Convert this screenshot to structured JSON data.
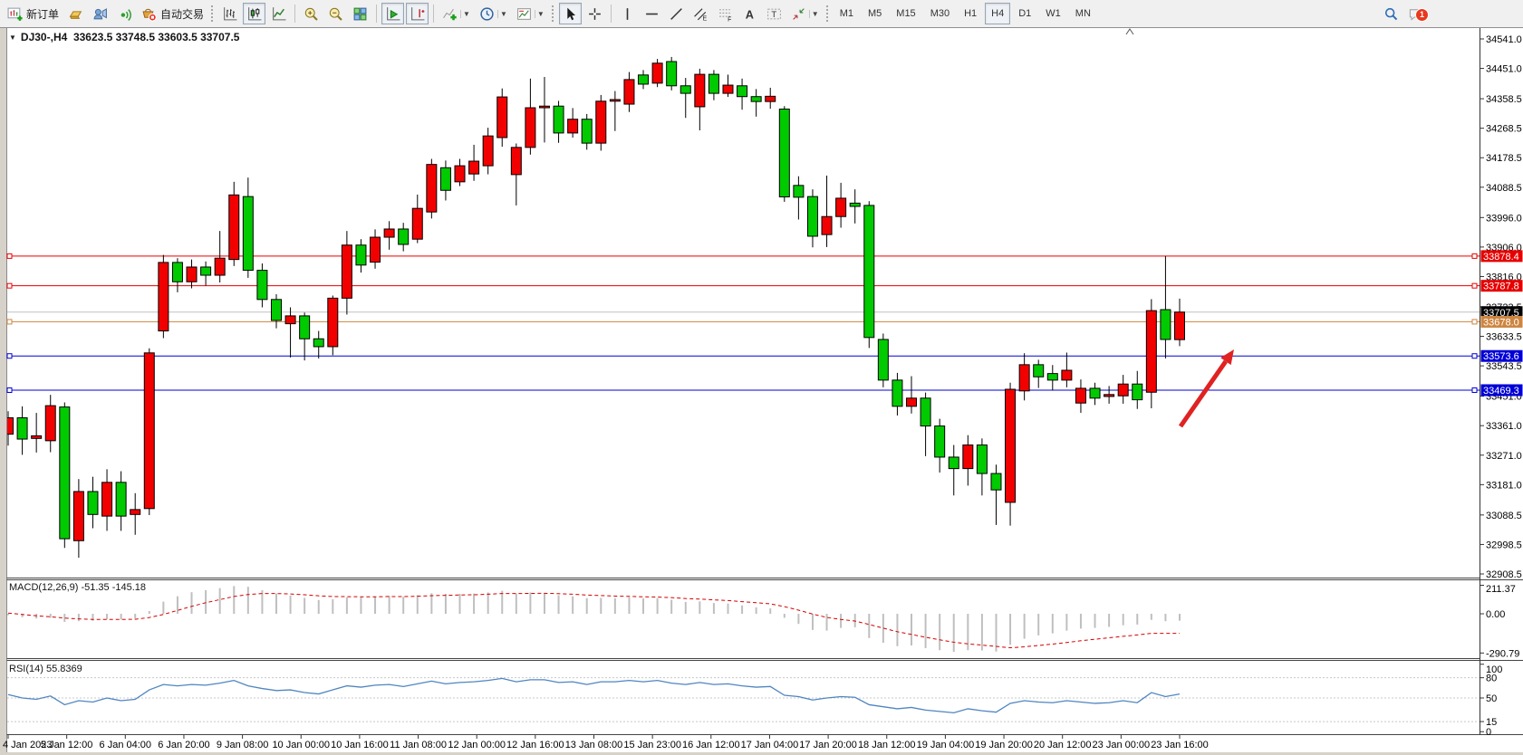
{
  "toolbar": {
    "groups": [
      {
        "grip": false,
        "sep": false,
        "items": [
          {
            "name": "new-order-button",
            "icon": "new-order",
            "label": "新订单"
          },
          {
            "name": "market-watch-button",
            "icon": "market-watch"
          },
          {
            "name": "data-window-button",
            "icon": "data-window"
          },
          {
            "name": "signals-button",
            "icon": "signals"
          },
          {
            "name": "autotrading-button",
            "icon": "autotrading",
            "label": "自动交易"
          }
        ]
      },
      {
        "grip": true,
        "items": [
          {
            "name": "bars-chart-button",
            "icon": "bars"
          },
          {
            "name": "candles-chart-button",
            "icon": "candles",
            "active": true
          },
          {
            "name": "line-chart-button",
            "icon": "line-chart"
          }
        ]
      },
      {
        "sep": true,
        "items": [
          {
            "name": "zoom-in-button",
            "icon": "zoom-in"
          },
          {
            "name": "zoom-out-button",
            "icon": "zoom-out"
          },
          {
            "name": "tile-windows-button",
            "icon": "tile-windows"
          }
        ]
      },
      {
        "sep": true,
        "items": [
          {
            "name": "auto-scroll-button",
            "icon": "auto-scroll",
            "active": true
          },
          {
            "name": "chart-shift-button",
            "icon": "chart-shift",
            "active": true
          }
        ]
      },
      {
        "sep": true,
        "items": [
          {
            "name": "indicators-button",
            "icon": "indicators",
            "dropdown": true
          },
          {
            "name": "periods-button",
            "icon": "periods",
            "dropdown": true
          },
          {
            "name": "templates-button",
            "icon": "templates",
            "dropdown": true
          }
        ]
      },
      {
        "grip": true,
        "items": [
          {
            "name": "cursor-button",
            "icon": "cursor",
            "active": true
          },
          {
            "name": "crosshair-button",
            "icon": "crosshair"
          }
        ]
      },
      {
        "sep": true,
        "items": [
          {
            "name": "vline-button",
            "icon": "vline"
          },
          {
            "name": "hline-button",
            "icon": "hline"
          },
          {
            "name": "trendline-button",
            "icon": "trendline"
          },
          {
            "name": "equidistant-channel-button",
            "icon": "channel"
          },
          {
            "name": "fibonacci-button",
            "icon": "fibonacci"
          },
          {
            "name": "text-button",
            "icon": "text"
          },
          {
            "name": "text-label-button",
            "icon": "label"
          },
          {
            "name": "arrows-button",
            "icon": "arrows",
            "dropdown": true
          }
        ]
      },
      {
        "grip": true,
        "items": [
          {
            "name": "tf-m1-button",
            "label": "M1"
          },
          {
            "name": "tf-m5-button",
            "label": "M5"
          },
          {
            "name": "tf-m15-button",
            "label": "M15"
          },
          {
            "name": "tf-m30-button",
            "label": "M30"
          },
          {
            "name": "tf-h1-button",
            "label": "H1"
          },
          {
            "name": "tf-h4-button",
            "label": "H4",
            "active": true
          },
          {
            "name": "tf-d1-button",
            "label": "D1"
          },
          {
            "name": "tf-w1-button",
            "label": "W1"
          },
          {
            "name": "tf-mn-button",
            "label": "MN"
          }
        ]
      }
    ],
    "right_items": [
      {
        "name": "search-button",
        "icon": "search"
      },
      {
        "name": "chat-button",
        "icon": "chat",
        "badge": "1"
      }
    ]
  },
  "chart": {
    "collapse_arrow": "▼",
    "title": "DJ30-,H4  33623.5 33748.5 33603.5 33707.5",
    "symbol": "DJ30-",
    "period": "H4",
    "open": "33623.5",
    "high": "33748.5",
    "low": "33603.5",
    "close": "33707.5"
  },
  "chart_data": {
    "type": "candlestick",
    "title": "DJ30-,H4",
    "price_axis": [
      34541.0,
      34451.0,
      34358.5,
      34268.5,
      34178.5,
      34088.5,
      33996.0,
      33906.0,
      33816.0,
      33723.5,
      33633.5,
      33543.5,
      33451.0,
      33361.0,
      33271.0,
      33181.0,
      33088.5,
      32998.5,
      32908.5
    ],
    "time_axis": [
      "4 Jan 2023",
      "5 Jan 12:00",
      "6 Jan 04:00",
      "6 Jan 20:00",
      "9 Jan 08:00",
      "10 Jan 00:00",
      "10 Jan 16:00",
      "11 Jan 08:00",
      "12 Jan 00:00",
      "12 Jan 16:00",
      "13 Jan 08:00",
      "15 Jan 23:00",
      "16 Jan 12:00",
      "17 Jan 04:00",
      "17 Jan 20:00",
      "18 Jan 12:00",
      "19 Jan 04:00",
      "19 Jan 20:00",
      "20 Jan 12:00",
      "23 Jan 00:00",
      "23 Jan 16:00"
    ],
    "candles": [
      [
        33335,
        33405,
        33300,
        33385
      ],
      [
        33385,
        33420,
        33272,
        33320
      ],
      [
        33322,
        33400,
        33279,
        33330
      ],
      [
        33315,
        33455,
        33280,
        33422
      ],
      [
        33418,
        33432,
        32988,
        33016
      ],
      [
        33010,
        33198,
        32958,
        33160
      ],
      [
        33160,
        33205,
        33048,
        33090
      ],
      [
        33085,
        33228,
        33040,
        33188
      ],
      [
        33188,
        33222,
        33040,
        33085
      ],
      [
        33090,
        33155,
        33028,
        33105
      ],
      [
        33108,
        33597,
        33088,
        33583
      ],
      [
        33650,
        33882,
        33628,
        33859
      ],
      [
        33859,
        33872,
        33768,
        33800
      ],
      [
        33800,
        33868,
        33780,
        33845
      ],
      [
        33845,
        33862,
        33788,
        33820
      ],
      [
        33820,
        33955,
        33798,
        33872
      ],
      [
        33868,
        34105,
        33848,
        34065
      ],
      [
        34060,
        34118,
        33812,
        33835
      ],
      [
        33835,
        33856,
        33722,
        33746
      ],
      [
        33746,
        33762,
        33658,
        33682
      ],
      [
        33672,
        33722,
        33569,
        33696
      ],
      [
        33696,
        33706,
        33560,
        33626
      ],
      [
        33626,
        33650,
        33566,
        33602
      ],
      [
        33602,
        33758,
        33576,
        33750
      ],
      [
        33750,
        33955,
        33700,
        33912
      ],
      [
        33912,
        33930,
        33828,
        33851
      ],
      [
        33860,
        33960,
        33840,
        33936
      ],
      [
        33936,
        33985,
        33898,
        33961
      ],
      [
        33961,
        33980,
        33893,
        33914
      ],
      [
        33930,
        34066,
        33918,
        34024
      ],
      [
        34013,
        34175,
        33993,
        34158
      ],
      [
        34148,
        34170,
        34048,
        34079
      ],
      [
        34105,
        34175,
        34092,
        34154
      ],
      [
        34129,
        34218,
        34108,
        34168
      ],
      [
        34154,
        34270,
        34128,
        34245
      ],
      [
        34240,
        34390,
        34212,
        34364
      ],
      [
        34127,
        34222,
        34033,
        34210
      ],
      [
        34210,
        34420,
        34188,
        34331
      ],
      [
        34331,
        34425,
        34225,
        34336
      ],
      [
        34336,
        34352,
        34224,
        34254
      ],
      [
        34254,
        34330,
        34240,
        34296
      ],
      [
        34296,
        34312,
        34203,
        34223
      ],
      [
        34223,
        34370,
        34200,
        34351
      ],
      [
        34351,
        34382,
        34260,
        34356
      ],
      [
        34342,
        34440,
        34318,
        34417
      ],
      [
        34431,
        34446,
        34388,
        34403
      ],
      [
        34406,
        34480,
        34394,
        34467
      ],
      [
        34472,
        34486,
        34384,
        34398
      ],
      [
        34398,
        34422,
        34300,
        34375
      ],
      [
        34334,
        34450,
        34262,
        34433
      ],
      [
        34433,
        34446,
        34354,
        34375
      ],
      [
        34375,
        34432,
        34364,
        34400
      ],
      [
        34398,
        34420,
        34325,
        34365
      ],
      [
        34365,
        34388,
        34304,
        34350
      ],
      [
        34350,
        34392,
        34328,
        34366
      ],
      [
        34327,
        34336,
        34044,
        34059
      ],
      [
        34094,
        34122,
        33990,
        34058
      ],
      [
        34060,
        34082,
        33905,
        33939
      ],
      [
        33944,
        34124,
        33906,
        33999
      ],
      [
        33999,
        34102,
        33965,
        34055
      ],
      [
        34040,
        34082,
        33978,
        34030
      ],
      [
        34033,
        34046,
        33598,
        33630
      ],
      [
        33624,
        33642,
        33478,
        33500
      ],
      [
        33500,
        33522,
        33392,
        33420
      ],
      [
        33420,
        33512,
        33398,
        33445
      ],
      [
        33445,
        33462,
        33268,
        33360
      ],
      [
        33360,
        33382,
        33218,
        33265
      ],
      [
        33265,
        33302,
        33148,
        33230
      ],
      [
        33230,
        33332,
        33178,
        33302
      ],
      [
        33302,
        33322,
        33148,
        33215
      ],
      [
        33215,
        33242,
        33058,
        33165
      ],
      [
        33127,
        33492,
        33056,
        33472
      ],
      [
        33467,
        33582,
        33438,
        33547
      ],
      [
        33547,
        33562,
        33476,
        33510
      ],
      [
        33520,
        33546,
        33468,
        33500
      ],
      [
        33500,
        33584,
        33478,
        33530
      ],
      [
        33430,
        33502,
        33400,
        33475
      ],
      [
        33475,
        33492,
        33424,
        33445
      ],
      [
        33450,
        33482,
        33428,
        33456
      ],
      [
        33452,
        33516,
        33428,
        33488
      ],
      [
        33488,
        33528,
        33412,
        33440
      ],
      [
        33463,
        33747,
        33414,
        33712
      ],
      [
        33715,
        33878.4,
        33566,
        33624
      ],
      [
        33623.5,
        33748.5,
        33603.5,
        33707.5
      ]
    ],
    "hlines": [
      {
        "price": 33878.4,
        "color": "#e60000"
      },
      {
        "price": 33787.8,
        "color": "#e60000"
      },
      {
        "price": 33707.5,
        "color": "#c0c0c0",
        "chip": "#000000",
        "current": true
      },
      {
        "price": 33678.0,
        "color": "#cd8540"
      },
      {
        "price": 33573.6,
        "color": "#0000d6"
      },
      {
        "price": 33469.3,
        "color": "#0000d6"
      }
    ],
    "macd": {
      "label": "MACD(12,26,9) -51.35 -145.18",
      "axis": [
        211.37,
        0.0,
        -290.79
      ],
      "main": [
        -10,
        -25,
        -35,
        -30,
        -60,
        -55,
        -52,
        -40,
        -42,
        -35,
        20,
        90,
        130,
        160,
        175,
        190,
        205,
        200,
        175,
        150,
        135,
        118,
        102,
        108,
        122,
        122,
        128,
        132,
        126,
        138,
        152,
        148,
        148,
        150,
        158,
        170,
        150,
        158,
        155,
        138,
        130,
        116,
        118,
        115,
        122,
        114,
        116,
        104,
        88,
        92,
        80,
        76,
        62,
        48,
        40,
        -30,
        -75,
        -120,
        -125,
        -105,
        -100,
        -180,
        -215,
        -240,
        -235,
        -255,
        -270,
        -282,
        -270,
        -272,
        -280,
        -230,
        -185,
        -160,
        -145,
        -125,
        -110,
        -105,
        -97,
        -85,
        -80,
        -45,
        -55,
        -51.35
      ],
      "signal": [
        5,
        -5,
        -15,
        -22,
        -32,
        -38,
        -42,
        -42,
        -42,
        -41,
        -28,
        -5,
        25,
        55,
        82,
        105,
        128,
        143,
        150,
        150,
        147,
        141,
        133,
        128,
        127,
        126,
        126,
        128,
        127,
        130,
        134,
        137,
        139,
        141,
        145,
        150,
        150,
        151,
        152,
        149,
        145,
        139,
        135,
        131,
        129,
        126,
        124,
        120,
        113,
        109,
        103,
        98,
        90,
        82,
        74,
        53,
        27,
        -2,
        -27,
        -42,
        -54,
        -79,
        -106,
        -133,
        -153,
        -174,
        -193,
        -211,
        -223,
        -232,
        -242,
        -252,
        -245,
        -235,
        -225,
        -213,
        -200,
        -189,
        -178,
        -167,
        -157,
        -145,
        -145,
        -145.18
      ]
    },
    "rsi": {
      "label": "RSI(14) 55.8369",
      "axis": [
        100,
        80,
        50,
        15,
        0
      ],
      "levels": [
        80,
        50,
        15
      ],
      "values": [
        55,
        50,
        48,
        53,
        40,
        46,
        44,
        50,
        46,
        48,
        62,
        70,
        68,
        70,
        69,
        72,
        76,
        68,
        64,
        61,
        62,
        58,
        56,
        62,
        68,
        66,
        69,
        70,
        67,
        71,
        75,
        71,
        73,
        74,
        76,
        79,
        74,
        77,
        77,
        73,
        74,
        70,
        74,
        74,
        76,
        74,
        76,
        72,
        70,
        73,
        70,
        71,
        68,
        66,
        67,
        54,
        52,
        47,
        50,
        52,
        51,
        40,
        37,
        34,
        36,
        32,
        30,
        28,
        34,
        31,
        29,
        42,
        46,
        44,
        43,
        46,
        44,
        42,
        43,
        46,
        43,
        58,
        52,
        55.84
      ]
    },
    "arrow": {
      "from": [
        1303,
        471
      ],
      "to": [
        1362,
        386
      ],
      "color": "#e02222"
    },
    "colors": {
      "up_candle": "#f20000",
      "down_candle": "#00ca00",
      "wick": "#000000",
      "macd_histogram": "#bfbfbf",
      "macd_signal": "#d40000",
      "rsi_line": "#4f86c0",
      "grid_dashed": "#c8c8c8",
      "current_price_chip": "#000000"
    }
  }
}
